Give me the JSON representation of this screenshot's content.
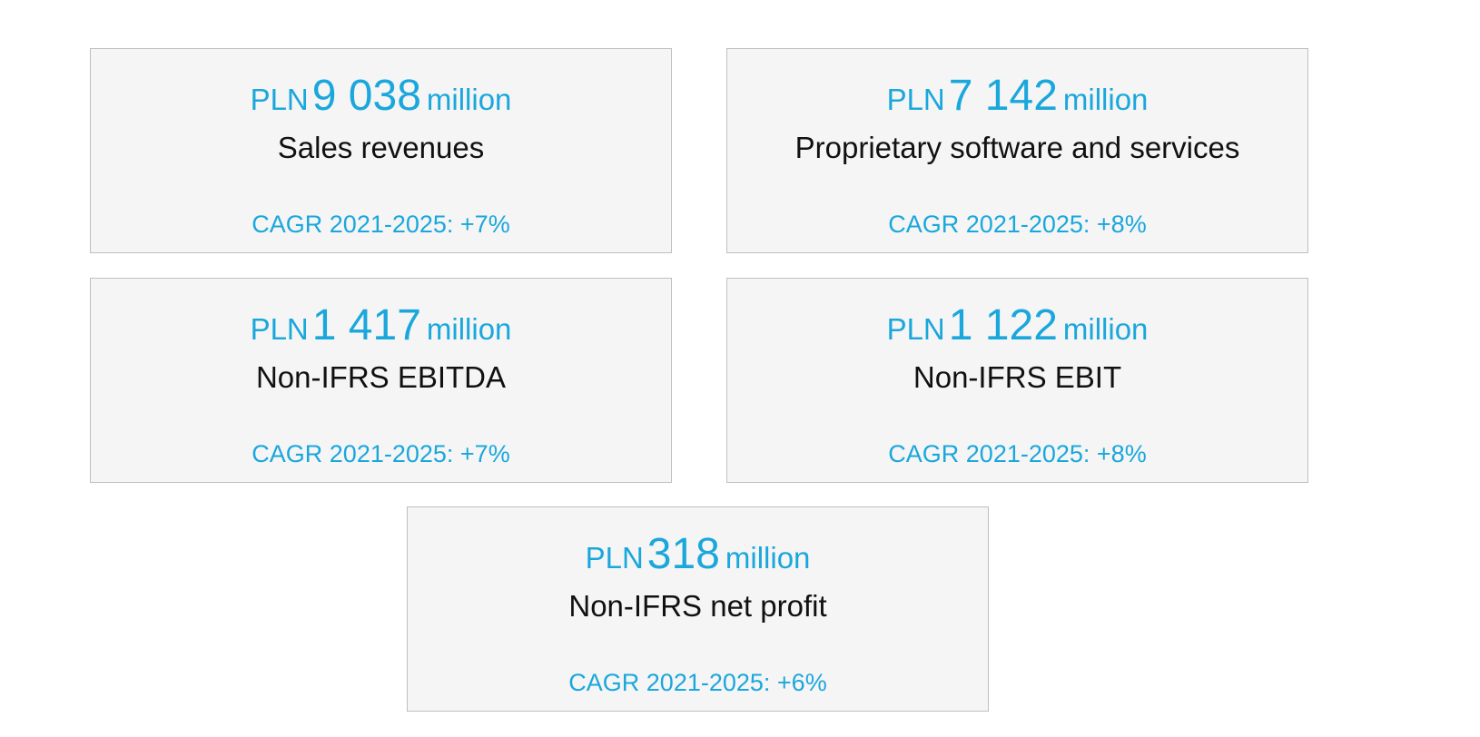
{
  "colors": {
    "accent": "#1aa7dc",
    "card_background": "#f5f5f5",
    "card_border": "#bfbfbf",
    "label_text": "#111111"
  },
  "cards": [
    {
      "currency": "PLN",
      "amount": "9 038",
      "unit": "million",
      "label": "Sales revenues",
      "cagr": "CAGR 2021-2025: +7%"
    },
    {
      "currency": "PLN",
      "amount": "7 142",
      "unit": "million",
      "label": "Proprietary software and services",
      "cagr": "CAGR 2021-2025: +8%"
    },
    {
      "currency": "PLN",
      "amount": "1 417",
      "unit": "million",
      "label": "Non-IFRS EBITDA",
      "cagr": "CAGR 2021-2025: +7%"
    },
    {
      "currency": "PLN",
      "amount": "1 122",
      "unit": "million",
      "label": "Non-IFRS EBIT",
      "cagr": "CAGR 2021-2025: +8%"
    },
    {
      "currency": "PLN",
      "amount": "318",
      "unit": "million",
      "label": "Non-IFRS net profit",
      "cagr": "CAGR 2021-2025: +6%"
    }
  ]
}
